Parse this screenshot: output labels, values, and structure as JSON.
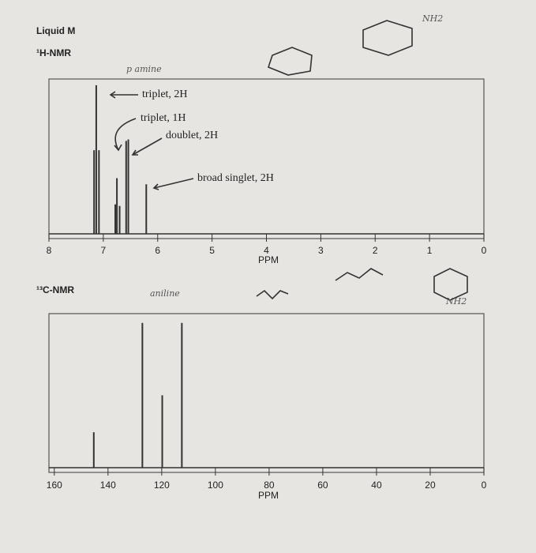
{
  "title": "Liquid M",
  "notes": [
    "p amine",
    "aniline",
    "NH2",
    "NH2"
  ],
  "chart_data": [
    {
      "type": "stick",
      "title": "¹H-NMR",
      "xlabel": "PPM",
      "x": [
        7.17,
        7.13,
        7.08,
        6.78,
        6.75,
        6.7,
        6.58,
        6.54,
        6.21
      ],
      "values": [
        54,
        96,
        54,
        19,
        36,
        18,
        60,
        61,
        32
      ],
      "xlim": [
        8,
        0
      ],
      "xticks": [
        8,
        7,
        6,
        5,
        4,
        3,
        2,
        1,
        0
      ],
      "ylim": [
        0,
        100
      ],
      "color": "#333333",
      "annotations": [
        "triplet, 2H",
        "triplet, 1H",
        "doublet, 2H",
        "broad singlet, 2H"
      ]
    },
    {
      "type": "stick",
      "title": "¹³C-NMR",
      "xlabel": "PPM",
      "x": [
        145.3,
        127.2,
        119.8,
        112.5
      ],
      "values": [
        23,
        94,
        47,
        94
      ],
      "xlim": [
        162,
        0
      ],
      "xticks": [
        160,
        140,
        120,
        100,
        80,
        60,
        40,
        20,
        0
      ],
      "ylim": [
        0,
        100
      ],
      "color": "#333333",
      "annotations": []
    }
  ]
}
